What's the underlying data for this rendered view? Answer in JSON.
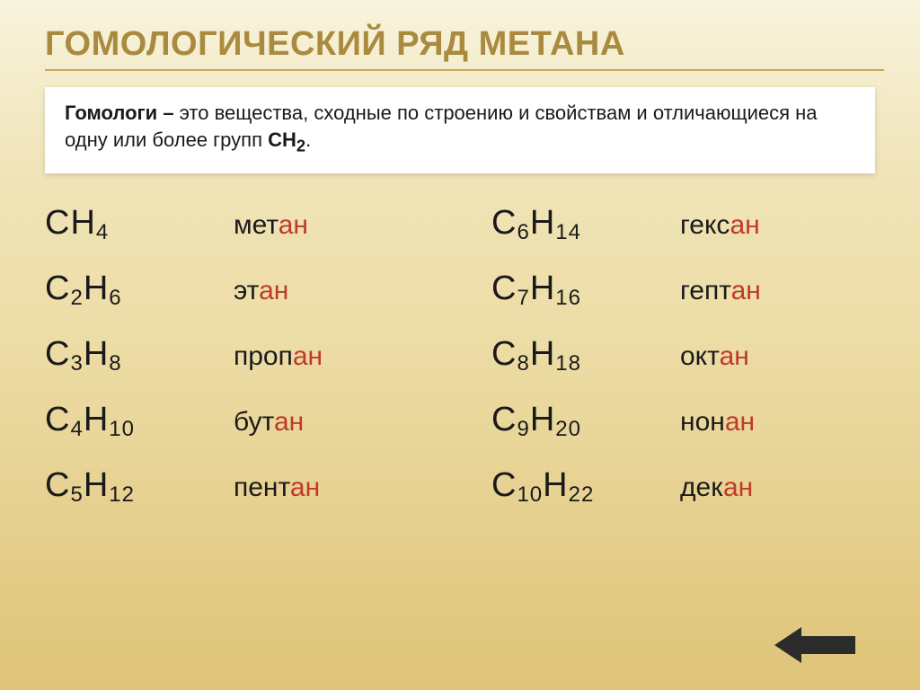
{
  "title": "ГОМОЛОГИЧЕСКИЙ РЯД МЕТАНА",
  "definition": {
    "lead": "Гомологи – ",
    "body_1": "это вещества, сходные по строению и свойствам и отличающиеся на одну или более групп ",
    "group": "СН",
    "group_sub": "2",
    "tail": "."
  },
  "left": [
    {
      "f_pre": "СН",
      "f_sub1": "4",
      "f_mid": "",
      "f_sub2": "",
      "root": "мет",
      "suffix": "ан"
    },
    {
      "f_pre": "С",
      "f_sub1": "2",
      "f_mid": "Н",
      "f_sub2": "6",
      "root": "эт",
      "suffix": "ан"
    },
    {
      "f_pre": "С",
      "f_sub1": "3",
      "f_mid": "Н",
      "f_sub2": "8",
      "root": "проп",
      "suffix": "ан"
    },
    {
      "f_pre": "С",
      "f_sub1": "4",
      "f_mid": "Н",
      "f_sub2": "10",
      "root": "бут",
      "suffix": "ан"
    },
    {
      "f_pre": "С",
      "f_sub1": "5",
      "f_mid": "Н",
      "f_sub2": "12",
      "root": "пент",
      "suffix": "ан"
    }
  ],
  "right": [
    {
      "f_pre": "С",
      "f_sub1": "6",
      "f_mid": "Н",
      "f_sub2": "14",
      "root": "гекс",
      "suffix": "ан"
    },
    {
      "f_pre": "С",
      "f_sub1": "7",
      "f_mid": "Н",
      "f_sub2": "16",
      "root": "гепт",
      "suffix": "ан"
    },
    {
      "f_pre": "С",
      "f_sub1": "8",
      "f_mid": "Н",
      "f_sub2": "18",
      "root": "окт",
      "suffix": "ан"
    },
    {
      "f_pre": "С",
      "f_sub1": "9",
      "f_mid": "Н",
      "f_sub2": "20",
      "root": "нон",
      "suffix": "ан"
    },
    {
      "f_pre": "С",
      "f_sub1": "10",
      "f_mid": "Н",
      "f_sub2": "22",
      "root": "дек",
      "suffix": "ан"
    }
  ],
  "colors": {
    "title": "#a98a3f",
    "suffix": "#c0392b",
    "arrow": "#2b2b2b"
  }
}
